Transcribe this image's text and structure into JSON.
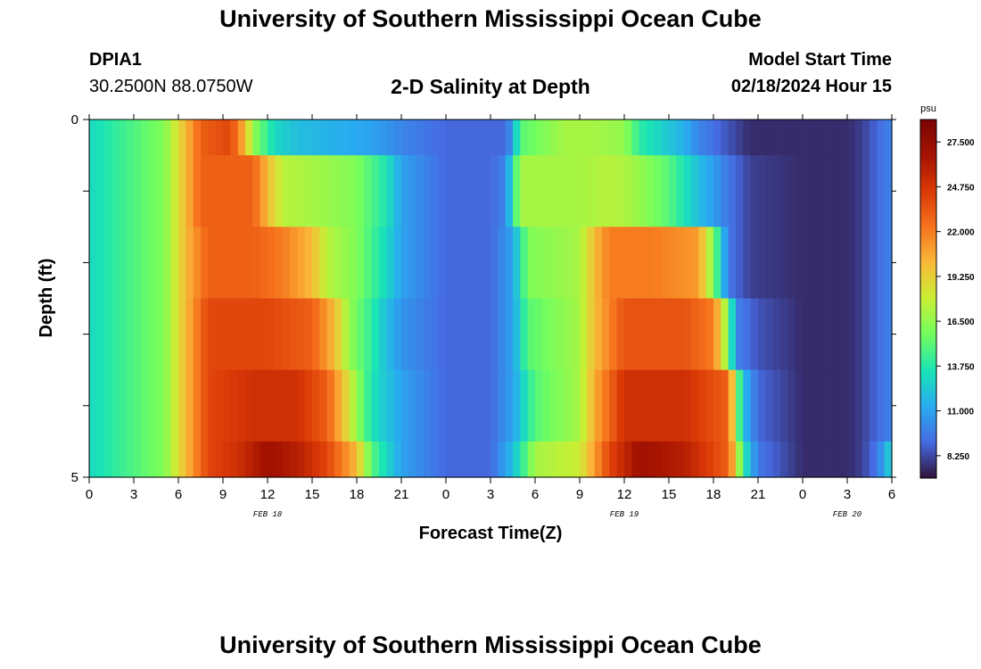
{
  "header": {
    "title": "University of Southern Mississippi Ocean Cube",
    "station_id": "DPIA1",
    "coordinates": "30.2500N  88.0750W",
    "plot_title": "2-D Salinity at Depth",
    "model_start_label": "Model Start Time",
    "model_start_value": "02/18/2024 Hour 15"
  },
  "footer": {
    "title": "University of Southern Mississippi Ocean Cube"
  },
  "chart_data": {
    "type": "heatmap",
    "title": "2-D Salinity at Depth",
    "xlabel": "Forecast Time(Z)",
    "ylabel": "Depth (ft)",
    "x_tick_labels": [
      "0",
      "3",
      "6",
      "9",
      "12",
      "15",
      "18",
      "21",
      "0",
      "3",
      "6",
      "9",
      "12",
      "15",
      "18",
      "21",
      "0",
      "3",
      "6"
    ],
    "day_labels": [
      {
        "label": "FEB 18",
        "at_hour": 12
      },
      {
        "label": "FEB 19",
        "at_hour": 36
      },
      {
        "label": "FEB 20",
        "at_hour": 51
      }
    ],
    "x_range_hours": [
      0,
      54
    ],
    "y_tick_labels": [
      "0",
      "5"
    ],
    "y_range_ft": [
      0,
      5
    ],
    "colorbar": {
      "unit": "psu",
      "range": [
        6.875,
        28.875
      ],
      "tick_labels": [
        "27.500",
        "24.750",
        "22.000",
        "19.250",
        "16.500",
        "13.750",
        "11.000",
        "8.250"
      ],
      "tick_values": [
        27.5,
        24.75,
        22.0,
        19.25,
        16.5,
        13.75,
        11.0,
        8.25
      ]
    },
    "layers": [
      {
        "depth_ft": [
          0,
          0.5
        ],
        "keyframes": [
          [
            0,
            13
          ],
          [
            5,
            16
          ],
          [
            6.5,
            20
          ],
          [
            7.5,
            23
          ],
          [
            9.5,
            24
          ],
          [
            10.5,
            20
          ],
          [
            11,
            16.5
          ],
          [
            12.5,
            13
          ],
          [
            14,
            12
          ],
          [
            19,
            11
          ],
          [
            21,
            10
          ],
          [
            24,
            9
          ],
          [
            26,
            9
          ],
          [
            28,
            9
          ],
          [
            28.5,
            11
          ],
          [
            29,
            15
          ],
          [
            32,
            17
          ],
          [
            34,
            17
          ],
          [
            36,
            16.5
          ],
          [
            37,
            14
          ],
          [
            40,
            11.5
          ],
          [
            41,
            10
          ],
          [
            43,
            8.5
          ],
          [
            44.5,
            7.5
          ],
          [
            48,
            7.5
          ],
          [
            51,
            7.5
          ],
          [
            52,
            8
          ],
          [
            53,
            9
          ],
          [
            54,
            10
          ]
        ]
      },
      {
        "depth_ft": [
          0.5,
          1.5
        ],
        "keyframes": [
          [
            0,
            13
          ],
          [
            5,
            16
          ],
          [
            6.5,
            20
          ],
          [
            7.5,
            23
          ],
          [
            11,
            23
          ],
          [
            12,
            20
          ],
          [
            13,
            17.5
          ],
          [
            15,
            17
          ],
          [
            18,
            16
          ],
          [
            20,
            13.5
          ],
          [
            21,
            11
          ],
          [
            24,
            9
          ],
          [
            27,
            9
          ],
          [
            28,
            10
          ],
          [
            29,
            17
          ],
          [
            33,
            17
          ],
          [
            35,
            17.5
          ],
          [
            36.5,
            17
          ],
          [
            39,
            15
          ],
          [
            41,
            12
          ],
          [
            43,
            9.5
          ],
          [
            44.5,
            8
          ],
          [
            48,
            7.5
          ],
          [
            51,
            7.5
          ],
          [
            52,
            8
          ],
          [
            53,
            9
          ],
          [
            54,
            10
          ]
        ]
      },
      {
        "depth_ft": [
          1.5,
          2.5
        ],
        "keyframes": [
          [
            0,
            13
          ],
          [
            5,
            16
          ],
          [
            6.5,
            20
          ],
          [
            8,
            23
          ],
          [
            11,
            23
          ],
          [
            13,
            22
          ],
          [
            15,
            20
          ],
          [
            16,
            17.5
          ],
          [
            18,
            16
          ],
          [
            20,
            13
          ],
          [
            21,
            11
          ],
          [
            24,
            9
          ],
          [
            27,
            9
          ],
          [
            28.5,
            11
          ],
          [
            29.5,
            16
          ],
          [
            33,
            17
          ],
          [
            34,
            20
          ],
          [
            35,
            22
          ],
          [
            38,
            22
          ],
          [
            41,
            21
          ],
          [
            42,
            16
          ],
          [
            43,
            9.5
          ],
          [
            44.5,
            8
          ],
          [
            48,
            7.5
          ],
          [
            51,
            7.5
          ],
          [
            52,
            8
          ],
          [
            53,
            9
          ],
          [
            54,
            10
          ]
        ]
      },
      {
        "depth_ft": [
          2.5,
          3.5
        ],
        "keyframes": [
          [
            0,
            13
          ],
          [
            5,
            16
          ],
          [
            6.5,
            20
          ],
          [
            8,
            24
          ],
          [
            12,
            24
          ],
          [
            15,
            23
          ],
          [
            16.5,
            20
          ],
          [
            17.5,
            16.5
          ],
          [
            19,
            14
          ],
          [
            20,
            12
          ],
          [
            21,
            10.5
          ],
          [
            24,
            9
          ],
          [
            27,
            9
          ],
          [
            28.5,
            11
          ],
          [
            29.5,
            15
          ],
          [
            33,
            17
          ],
          [
            34,
            20
          ],
          [
            36,
            23.5
          ],
          [
            40,
            23.5
          ],
          [
            42,
            22
          ],
          [
            43,
            16
          ],
          [
            43.5,
            10
          ],
          [
            45,
            8.5
          ],
          [
            48,
            7.5
          ],
          [
            51,
            7.5
          ],
          [
            52,
            8
          ],
          [
            53,
            9
          ],
          [
            54,
            10
          ]
        ]
      },
      {
        "depth_ft": [
          3.5,
          4.5
        ],
        "keyframes": [
          [
            0,
            13
          ],
          [
            5,
            16
          ],
          [
            6.5,
            20
          ],
          [
            8,
            24
          ],
          [
            11,
            25
          ],
          [
            14,
            25
          ],
          [
            16,
            23
          ],
          [
            17,
            20
          ],
          [
            18,
            16.5
          ],
          [
            19,
            13.5
          ],
          [
            21,
            11
          ],
          [
            24,
            9
          ],
          [
            27,
            9
          ],
          [
            28.5,
            11
          ],
          [
            30,
            15
          ],
          [
            33,
            17
          ],
          [
            34,
            20.5
          ],
          [
            36,
            25
          ],
          [
            40,
            25
          ],
          [
            43,
            23
          ],
          [
            43.5,
            17
          ],
          [
            44,
            12
          ],
          [
            45,
            9
          ],
          [
            48,
            7.5
          ],
          [
            51,
            7.5
          ],
          [
            52,
            8
          ],
          [
            53,
            9
          ],
          [
            54,
            10
          ]
        ]
      },
      {
        "depth_ft": [
          4.5,
          5
        ],
        "keyframes": [
          [
            0,
            13
          ],
          [
            5,
            16
          ],
          [
            6.5,
            20
          ],
          [
            8,
            24
          ],
          [
            10,
            25
          ],
          [
            12,
            27
          ],
          [
            14,
            26
          ],
          [
            16,
            24
          ],
          [
            18,
            20
          ],
          [
            19,
            15
          ],
          [
            20,
            13
          ],
          [
            21,
            11
          ],
          [
            24,
            9
          ],
          [
            27,
            9
          ],
          [
            28.5,
            12
          ],
          [
            30,
            17
          ],
          [
            33,
            18
          ],
          [
            35,
            24
          ],
          [
            37,
            27
          ],
          [
            40,
            26
          ],
          [
            43,
            23
          ],
          [
            43.5,
            19
          ],
          [
            44,
            14
          ],
          [
            45,
            9.5
          ],
          [
            48,
            7.5
          ],
          [
            51,
            7.5
          ],
          [
            52,
            8
          ],
          [
            53,
            9.5
          ],
          [
            54,
            13
          ]
        ]
      }
    ]
  }
}
